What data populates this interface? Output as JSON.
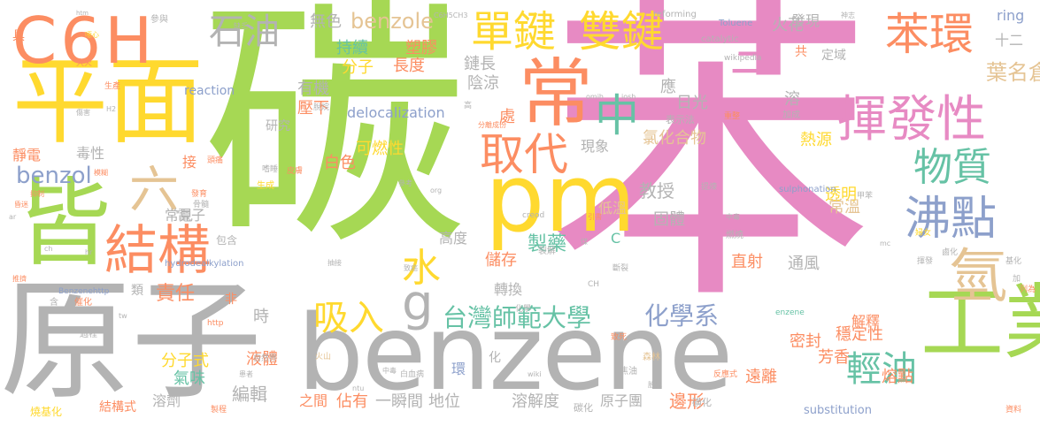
{
  "palette": {
    "green": "#a6d854",
    "pink": "#e78ac3",
    "gray": "#b3b3b3",
    "orange": "#fc8d62",
    "yellow": "#ffd92f",
    "teal": "#66c2a5",
    "blue": "#8da0cb",
    "tan": "#e5c494"
  },
  "words": [
    {
      "text": "碳",
      "color": "green"
    },
    {
      "text": "苯",
      "color": "pink"
    },
    {
      "text": "原子",
      "color": "gray"
    },
    {
      "text": "benzene",
      "color": "gray"
    },
    {
      "text": "平面",
      "color": "yellow"
    },
    {
      "text": "C6H",
      "color": "orange"
    },
    {
      "text": "皆",
      "color": "green"
    },
    {
      "text": "pm",
      "color": "yellow"
    },
    {
      "text": "工業",
      "color": "green"
    },
    {
      "text": "常",
      "color": "orange"
    },
    {
      "text": "揮發性",
      "color": "pink"
    },
    {
      "text": "苯環",
      "color": "orange"
    },
    {
      "text": "單鍵",
      "color": "yellow"
    },
    {
      "text": "雙鍵",
      "color": "yellow"
    },
    {
      "text": "結構",
      "color": "orange"
    },
    {
      "text": "沸點",
      "color": "blue"
    },
    {
      "text": "物質",
      "color": "teal"
    },
    {
      "text": "中",
      "color": "teal"
    },
    {
      "text": "取代",
      "color": "orange"
    },
    {
      "text": "水",
      "color": "yellow"
    },
    {
      "text": "氫",
      "color": "tan"
    },
    {
      "text": "輕油",
      "color": "teal"
    },
    {
      "text": "g",
      "color": "gray"
    },
    {
      "text": "六",
      "color": "tan"
    },
    {
      "text": "三",
      "color": "pink"
    },
    {
      "text": "石油",
      "color": "gray"
    },
    {
      "text": "吸入",
      "color": "yellow"
    },
    {
      "text": "台灣師範大學",
      "color": "teal"
    },
    {
      "text": "化學系",
      "color": "blue"
    },
    {
      "text": "benzole",
      "color": "tan"
    },
    {
      "text": "benzol",
      "color": "blue"
    },
    {
      "text": "葉名倉",
      "color": "tan"
    },
    {
      "text": "無色",
      "color": "gray"
    },
    {
      "text": "分子",
      "color": "yellow"
    },
    {
      "text": "長度",
      "color": "orange"
    },
    {
      "text": "鏈長",
      "color": "gray"
    },
    {
      "text": "陰涼",
      "color": "gray"
    },
    {
      "text": "塑膠",
      "color": "orange"
    },
    {
      "text": "持續",
      "color": "teal"
    },
    {
      "text": "有機",
      "color": "gray"
    },
    {
      "text": "壓下",
      "color": "orange"
    },
    {
      "text": "研究",
      "color": "gray"
    },
    {
      "text": "delocalization",
      "color": "blue"
    },
    {
      "text": "reaction",
      "color": "blue"
    },
    {
      "text": "可燃性",
      "color": "yellow"
    },
    {
      "text": "日光",
      "color": "gray"
    },
    {
      "text": "氯化合物",
      "color": "tan"
    },
    {
      "text": "熱源",
      "color": "yellow"
    },
    {
      "text": "白色",
      "color": "orange"
    },
    {
      "text": "教授",
      "color": "gray"
    },
    {
      "text": "透明",
      "color": "yellow"
    },
    {
      "text": "常溫",
      "color": "tan"
    },
    {
      "text": "低溫",
      "color": "tan"
    },
    {
      "text": "固體",
      "color": "gray"
    },
    {
      "text": "高度",
      "color": "gray"
    },
    {
      "text": "製藥",
      "color": "teal"
    },
    {
      "text": "直射",
      "color": "orange"
    },
    {
      "text": "通風",
      "color": "gray"
    },
    {
      "text": "儲存",
      "color": "orange"
    },
    {
      "text": "轉換",
      "color": "gray"
    },
    {
      "text": "責任",
      "color": "orange"
    },
    {
      "text": "時",
      "color": "gray"
    },
    {
      "text": "密封",
      "color": "orange"
    },
    {
      "text": "穩定性",
      "color": "orange"
    },
    {
      "text": "芳香",
      "color": "orange"
    },
    {
      "text": "熔點",
      "color": "orange"
    },
    {
      "text": "解釋",
      "color": "orange"
    },
    {
      "text": "遠離",
      "color": "orange"
    },
    {
      "text": "分子式",
      "color": "yellow"
    },
    {
      "text": "氣味",
      "color": "teal"
    },
    {
      "text": "液體",
      "color": "orange"
    },
    {
      "text": "編輯",
      "color": "gray"
    },
    {
      "text": "結構式",
      "color": "orange"
    },
    {
      "text": "溶劑",
      "color": "gray"
    },
    {
      "text": "之間",
      "color": "orange"
    },
    {
      "text": "佔有",
      "color": "orange"
    },
    {
      "text": "一瞬間",
      "color": "gray"
    },
    {
      "text": "地位",
      "color": "gray"
    },
    {
      "text": "溶解度",
      "color": "gray"
    },
    {
      "text": "原子團",
      "color": "gray"
    },
    {
      "text": "邊形",
      "color": "orange"
    },
    {
      "text": "substitution",
      "color": "blue"
    },
    {
      "text": "毒性",
      "color": "gray"
    },
    {
      "text": "靜電",
      "color": "orange"
    },
    {
      "text": "常見",
      "color": "gray"
    },
    {
      "text": "電子",
      "color": "gray"
    },
    {
      "text": "類",
      "color": "gray"
    },
    {
      "text": "接",
      "color": "orange"
    },
    {
      "text": "現象",
      "color": "gray"
    },
    {
      "text": "處",
      "color": "orange"
    },
    {
      "text": "應",
      "color": "gray"
    },
    {
      "text": "溶",
      "color": "gray"
    },
    {
      "text": "火花",
      "color": "gray"
    },
    {
      "text": "發現",
      "color": "gray"
    },
    {
      "text": "定域",
      "color": "gray"
    },
    {
      "text": "ring",
      "color": "blue"
    },
    {
      "text": "十二",
      "color": "gray"
    },
    {
      "text": "共",
      "color": "orange"
    },
    {
      "text": "具",
      "color": "orange"
    },
    {
      "text": "C",
      "color": "teal"
    },
    {
      "text": "環",
      "color": "blue"
    },
    {
      "text": "化",
      "color": "gray"
    },
    {
      "text": "非",
      "color": "orange"
    },
    {
      "text": "包含",
      "color": "gray"
    },
    {
      "text": "catalytic",
      "color": "gray"
    },
    {
      "text": "Toluene",
      "color": "blue"
    },
    {
      "text": "reforming",
      "color": "gray"
    },
    {
      "text": "wikipedia",
      "color": "gray"
    },
    {
      "text": "表示法",
      "color": "gray"
    },
    {
      "text": "sulphonation",
      "color": "blue"
    },
    {
      "text": "hydrodealkylation",
      "color": "blue"
    },
    {
      "text": "Benzenehttp",
      "color": "blue"
    },
    {
      "text": "C6H5CH3",
      "color": "gray"
    },
    {
      "text": "creod",
      "color": "gray"
    },
    {
      "text": "enzene",
      "color": "teal"
    },
    {
      "text": "參與",
      "color": "gray"
    },
    {
      "text": "生產",
      "color": "orange"
    },
    {
      "text": "燒基化",
      "color": "yellow"
    },
    {
      "text": "碳化",
      "color": "gray"
    },
    {
      "text": "磺化",
      "color": "gray"
    },
    {
      "text": "焦油",
      "color": "gray"
    },
    {
      "text": "森林",
      "color": "tan"
    },
    {
      "text": "火山",
      "color": "tan"
    },
    {
      "text": "自然界",
      "color": "gray"
    },
    {
      "text": "燃燒",
      "color": "gray"
    },
    {
      "text": "鹵化",
      "color": "gray"
    },
    {
      "text": "裂解",
      "color": "gray"
    },
    {
      "text": "斷裂",
      "color": "gray"
    },
    {
      "text": "反應式",
      "color": "orange"
    },
    {
      "text": "加成",
      "color": "gray"
    },
    {
      "text": "重整",
      "color": "orange"
    },
    {
      "text": "催化",
      "color": "orange"
    },
    {
      "text": "過程",
      "color": "gray"
    },
    {
      "text": "含",
      "color": "gray"
    },
    {
      "text": "化學",
      "color": "gray"
    },
    {
      "text": "資料",
      "color": "orange"
    },
    {
      "text": "製程",
      "color": "orange"
    },
    {
      "text": "患者",
      "color": "gray"
    },
    {
      "text": "白血病",
      "color": "gray"
    },
    {
      "text": "ntu",
      "color": "gray"
    },
    {
      "text": "wiki",
      "color": "gray"
    },
    {
      "text": "胎兒",
      "color": "gray"
    },
    {
      "text": "致死",
      "color": "orange"
    },
    {
      "text": "中毒",
      "color": "gray"
    },
    {
      "text": "提煉",
      "color": "gray"
    },
    {
      "text": "甲苯",
      "color": "gray"
    },
    {
      "text": "婦女",
      "color": "yellow"
    },
    {
      "text": "揮發",
      "color": "gray"
    },
    {
      "text": "mc",
      "color": "gray"
    },
    {
      "text": "基化",
      "color": "gray"
    },
    {
      "text": "加",
      "color": "gray"
    },
    {
      "text": "列為",
      "color": "orange"
    },
    {
      "text": "CH",
      "color": "gray"
    },
    {
      "text": "致癌",
      "color": "gray"
    },
    {
      "text": "抽接",
      "color": "gray"
    },
    {
      "text": "煤",
      "color": "gray"
    },
    {
      "text": "引書",
      "color": "orange"
    },
    {
      "text": "參考",
      "color": "gray"
    },
    {
      "text": "org",
      "color": "gray"
    },
    {
      "text": "皮膚",
      "color": "orange"
    },
    {
      "text": "頭痛",
      "color": "orange"
    },
    {
      "text": "發育",
      "color": "orange"
    },
    {
      "text": "骨髓",
      "color": "gray"
    },
    {
      "text": "生成",
      "color": "yellow"
    },
    {
      "text": "嗜睡",
      "color": "gray"
    },
    {
      "text": "高",
      "color": "gray"
    },
    {
      "text": "脫烷",
      "color": "gray"
    },
    {
      "text": "分離成份",
      "color": "orange"
    },
    {
      "text": "omih",
      "color": "gray"
    },
    {
      "text": "iosh",
      "color": "gray"
    },
    {
      "text": "H2",
      "color": "gray"
    },
    {
      "text": "傷害",
      "color": "gray"
    },
    {
      "text": "模糊",
      "color": "orange"
    },
    {
      "text": "大火",
      "color": "orange"
    },
    {
      "text": "噁心",
      "color": "yellow"
    },
    {
      "text": "htm",
      "color": "gray"
    },
    {
      "text": "hr",
      "color": "gray"
    },
    {
      "text": "推擠",
      "color": "orange"
    },
    {
      "text": "抑制",
      "color": "orange"
    },
    {
      "text": "昏迷",
      "color": "orange"
    },
    {
      "text": "ar",
      "color": "gray"
    },
    {
      "text": "tw",
      "color": "gray"
    },
    {
      "text": "http",
      "color": "orange"
    },
    {
      "text": "ch",
      "color": "gray"
    },
    {
      "text": "中毒",
      "color": "gray"
    },
    {
      "text": "缺乏",
      "color": "gray"
    },
    {
      "text": "神志",
      "color": "gray"
    }
  ]
}
